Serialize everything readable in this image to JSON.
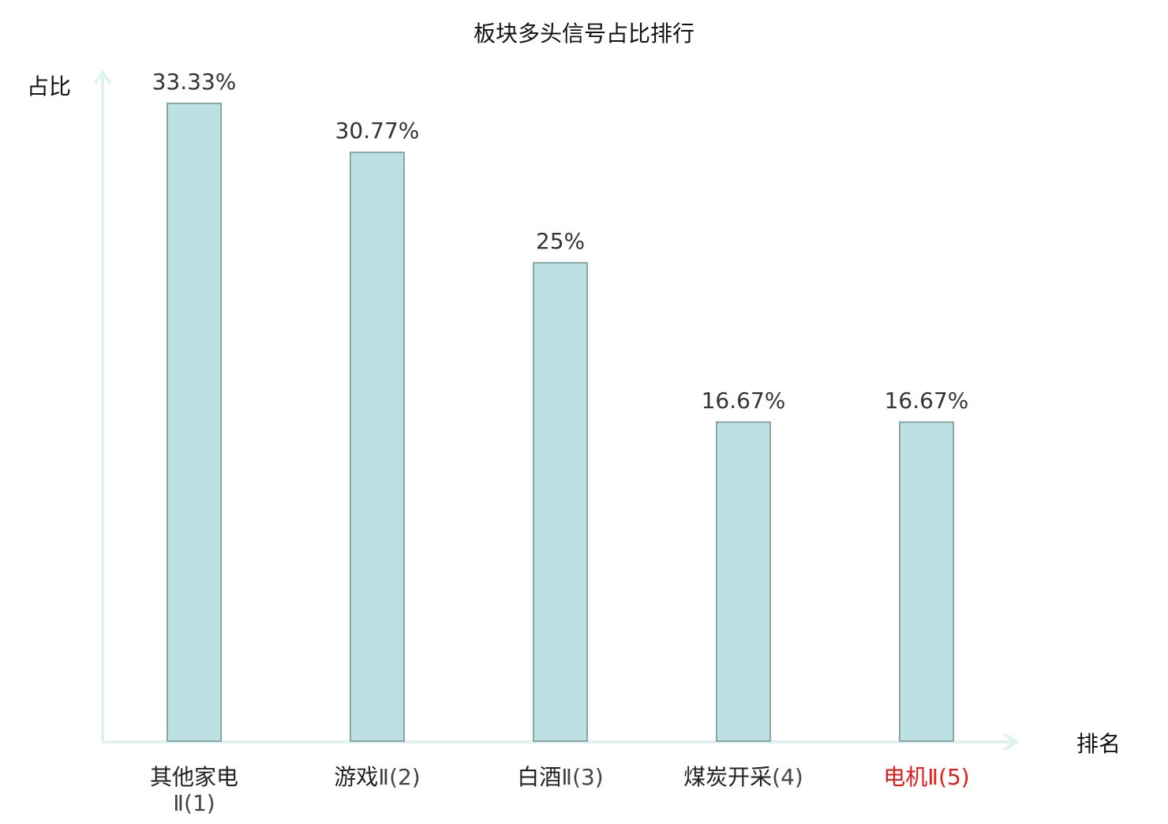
{
  "title": "板块多头信号占比排行",
  "colors": {
    "bar_fill": "#bde0e2",
    "bar_stroke": "#8aa6a6",
    "axis": "#dff2f0",
    "value_label": "#333333",
    "category_label": "#222222",
    "category_highlight": "#e21b1b",
    "category_suffix": "#444444"
  },
  "chart_data": {
    "type": "bar",
    "title": "板块多头信号占比排行",
    "xlabel": "排名",
    "ylabel": "占比",
    "ylim": [
      0,
      33.33
    ],
    "grid": false,
    "categories": [
      {
        "name": "其他家电",
        "suffix": "Ⅱ(1)",
        "highlight": false
      },
      {
        "name": "游戏",
        "suffix": "Ⅱ(2)",
        "highlight": false
      },
      {
        "name": "白酒",
        "suffix": "Ⅱ(3)",
        "highlight": false
      },
      {
        "name": "煤炭开采",
        "suffix": "(4)",
        "highlight": false
      },
      {
        "name": "电机",
        "suffix": "Ⅱ(5)",
        "highlight": true
      }
    ],
    "values": [
      33.33,
      30.77,
      25,
      16.67,
      16.67
    ],
    "value_labels": [
      "33.33%",
      "30.77%",
      "25%",
      "16.67%",
      "16.67%"
    ]
  }
}
